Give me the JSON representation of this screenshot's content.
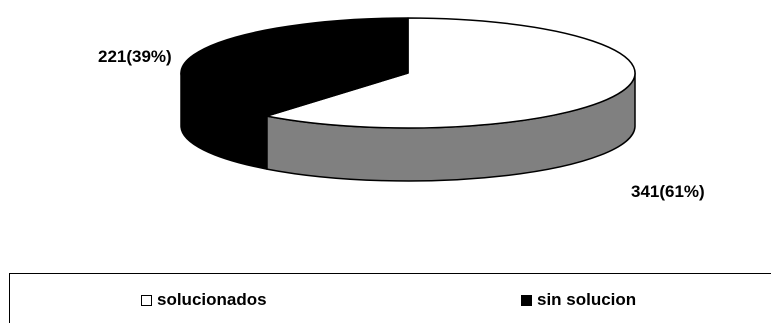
{
  "chart_data": {
    "type": "pie",
    "categories": [
      "solucionados",
      "sin solucion"
    ],
    "values": [
      341,
      221
    ],
    "percentages": [
      61,
      39
    ],
    "data_labels": [
      "341(61%)",
      "221(39%)"
    ],
    "colors": [
      "#ffffff",
      "#000000"
    ],
    "side_colors": [
      "#808080",
      "#000000"
    ],
    "style": "3d",
    "legend_position": "bottom"
  },
  "legend": {
    "items": [
      {
        "label": "solucionados",
        "color": "#ffffff"
      },
      {
        "label": "sin solucion",
        "color": "#000000"
      }
    ]
  }
}
